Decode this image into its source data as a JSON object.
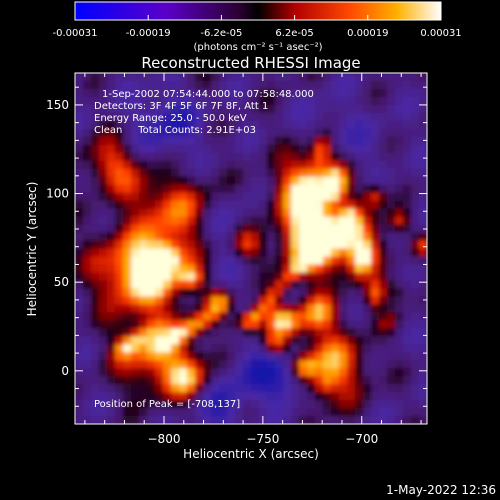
{
  "colorbar": {
    "tick_labels": [
      "-0.00031",
      "-0.00019",
      "-6.2e-05",
      "6.2e-05",
      "0.00019",
      "0.00031"
    ],
    "units_label": "(photons cm⁻² s⁻¹ asec⁻²)"
  },
  "chart_data": {
    "type": "heatmap",
    "title": "Reconstructed RHESSI Image",
    "xlabel": "Heliocentric X (arcsec)",
    "ylabel": "Heliocentric Y (arcsec)",
    "xlim": [
      -845,
      -667
    ],
    "ylim": [
      -30,
      168
    ],
    "x_ticks": [
      -800,
      -750,
      -700
    ],
    "y_ticks": [
      0,
      50,
      100,
      150
    ],
    "colormap": "black-blue-purple-red-orange-yellow-white",
    "value_range": [
      -0.00031,
      0.00031
    ],
    "peak": [
      -708,
      137
    ],
    "annotations": [
      "1-Sep-2002 07:54:44.000 to 07:58:48.000",
      "Detectors: 3F 4F 5F 6F 7F 8F, Att 1",
      "Energy Range: 25.0 - 50.0 keV",
      "Clean     Total Counts: 2.91E+03"
    ],
    "peak_label": "Position of Peak = [-708,137]",
    "timestamp": "1-May-2022 12:36"
  }
}
